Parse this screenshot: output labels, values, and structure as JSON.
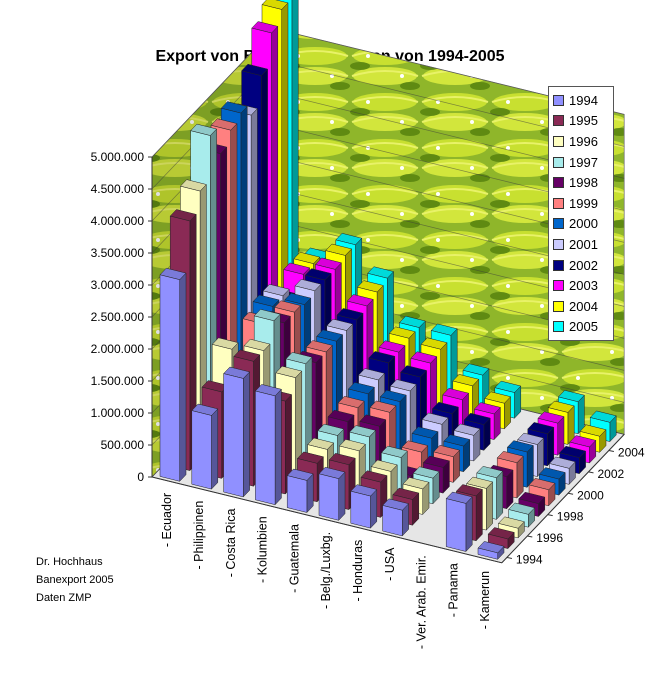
{
  "chart_data": {
    "type": "bar3d",
    "title": "Export von Bananen in Tonnen von 1994-2005",
    "categories": [
      "- Ecuador",
      "- Philippinen",
      "- Costa Rica",
      "- Kolumbien",
      "- Guatemala",
      "- Belg./Luxbg.",
      "- Honduras",
      "- USA",
      "- Ver. Arab. Emir.",
      "- Panama",
      "- Kamerun"
    ],
    "years": [
      "1994",
      "1995",
      "1996",
      "1997",
      "1998",
      "1999",
      "2000",
      "2001",
      "2002",
      "2003",
      "2004",
      "2005"
    ],
    "depth_tick_labels": [
      "1994",
      "1996",
      "1998",
      "2000",
      "2002",
      "2004"
    ],
    "y_tick_labels": [
      "0",
      "500.000",
      "1.000.000",
      "1.500.000",
      "2.000.000",
      "2.500.000",
      "3.000.000",
      "3.500.000",
      "4.000.000",
      "4.500.000",
      "5.000.000"
    ],
    "ylim": [
      0,
      5000000
    ],
    "series_colors": [
      "#9090ff",
      "#8a2a55",
      "#ffffc0",
      "#a8ecec",
      "#660066",
      "#ff8080",
      "#0066cc",
      "#ccccff",
      "#000080",
      "#ff00ff",
      "#ffff00",
      "#00ffff"
    ],
    "values": [
      [
        3150000,
        3900000,
        4200000,
        4900000,
        4450000,
        4650000,
        4750000,
        4550000,
        5000000,
        5500000,
        5700000,
        5850000
      ],
      [
        1150000,
        1350000,
        1850000,
        1500000,
        1150000,
        1750000,
        1850000,
        1850000,
        1600000,
        1850000,
        1850000,
        1750000
      ],
      [
        1850000,
        1950000,
        1950000,
        2250000,
        2050000,
        2050000,
        2000000,
        2050000,
        2050000,
        2050000,
        2100000,
        2100000
      ],
      [
        1700000,
        1450000,
        1650000,
        1700000,
        1550000,
        1550000,
        1550000,
        1550000,
        1550000,
        1600000,
        1650000,
        1700000
      ],
      [
        500000,
        600000,
        650000,
        700000,
        750000,
        800000,
        850000,
        900000,
        1000000,
        1000000,
        1050000,
        1050000
      ],
      [
        650000,
        700000,
        750000,
        800000,
        800000,
        850000,
        850000,
        850000,
        900000,
        950000,
        1000000,
        1050000
      ],
      [
        500000,
        550000,
        550000,
        600000,
        150000,
        350000,
        400000,
        450000,
        450000,
        500000,
        550000,
        550000
      ],
      [
        400000,
        400000,
        400000,
        400000,
        400000,
        400000,
        400000,
        400000,
        400000,
        400000,
        400000,
        400000
      ],
      [
        0,
        0,
        0,
        0,
        0,
        0,
        0,
        0,
        0,
        0,
        0,
        0
      ],
      [
        750000,
        700000,
        650000,
        650000,
        500000,
        550000,
        550000,
        500000,
        500000,
        500000,
        500000,
        500000
      ],
      [
        100000,
        150000,
        150000,
        200000,
        200000,
        250000,
        250000,
        250000,
        250000,
        250000,
        250000,
        300000
      ]
    ]
  },
  "footnote": {
    "line1": "Dr. Hochhaus",
    "line2": "Banexport 2005",
    "line3": "Daten ZMP"
  }
}
